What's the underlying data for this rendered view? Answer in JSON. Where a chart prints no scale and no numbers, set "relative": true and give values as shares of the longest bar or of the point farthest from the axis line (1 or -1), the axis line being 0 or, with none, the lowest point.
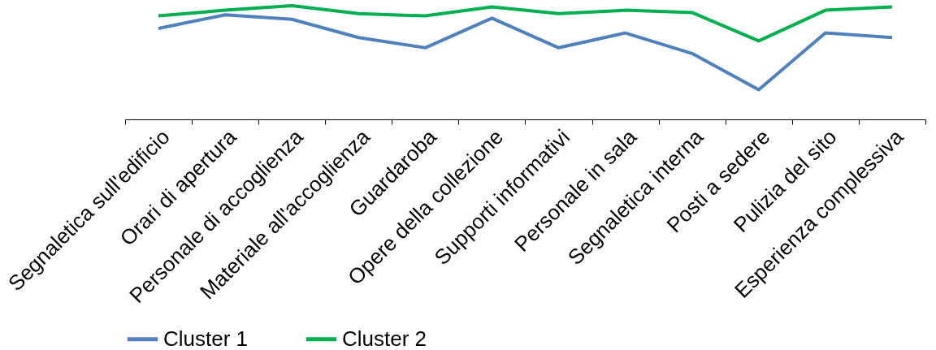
{
  "chart_data": {
    "type": "line",
    "relative": true,
    "legend": "bottom",
    "line_style": "solid",
    "marker": "none",
    "grid": false,
    "categories": [
      "Segnaletica sull'edificio",
      "Orari di apertura",
      "Personale di accoglienza",
      "Materiale all'accoglienza",
      "Guardaroba",
      "Opere della collezione",
      "Supporti informativi",
      "Personale in sala",
      "Segnaletica interna",
      "Posti a sedere",
      "Pulizia del sito",
      "Esperienza complessiva"
    ],
    "series": [
      {
        "name": "Cluster 1",
        "color": "#4f81bd",
        "values": [
          0.8,
          0.92,
          0.88,
          0.72,
          0.63,
          0.89,
          0.63,
          0.76,
          0.58,
          0.26,
          0.76,
          0.72
        ]
      },
      {
        "name": "Cluster 2",
        "color": "#00b050",
        "values": [
          0.91,
          0.96,
          1.0,
          0.93,
          0.91,
          0.99,
          0.93,
          0.96,
          0.94,
          0.69,
          0.96,
          0.99
        ]
      }
    ]
  }
}
